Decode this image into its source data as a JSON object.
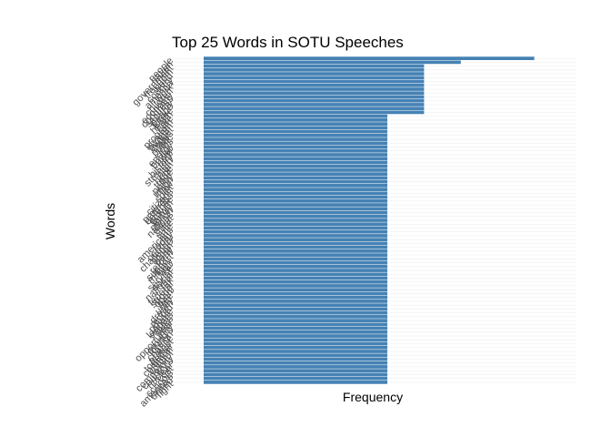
{
  "chart_data": {
    "type": "bar",
    "orientation": "horizontal",
    "title": "Top 25 Words in SOTU Speeches",
    "xlabel": "Frequency",
    "ylabel": "Words",
    "bar_color": "#4682b4",
    "background": "#ffffff",
    "gridline_color": "#ebebeb",
    "grid": true,
    "legend": "none",
    "x_tick_labels_shown": false,
    "y_tick_label_angle": 45,
    "xlim": [
      0,
      20
    ],
    "categories": [
      "people",
      "nation",
      "government",
      "freedom",
      "world",
      "country",
      "america",
      "work",
      "children",
      "economy",
      "congress",
      "security",
      "peace",
      "future",
      "health",
      "care",
      "program",
      "system",
      "budget",
      "states",
      "public",
      "jobs",
      "energy",
      "power",
      "help",
      "history",
      "strength",
      "plan",
      "hope",
      "trade",
      "policy",
      "union",
      "law",
      "spirit",
      "citizens",
      "progress",
      "defense",
      "growth",
      "family",
      "million",
      "nations",
      "great",
      "life",
      "time",
      "americans",
      "today",
      "century",
      "challenge",
      "action",
      "party",
      "reform",
      "support",
      "military",
      "war",
      "service",
      "social",
      "national",
      "tax",
      "federal",
      "strong",
      "open",
      "free",
      "unity",
      "dream",
      "record",
      "private",
      "leaders",
      "values",
      "year",
      "opportunity",
      "world's",
      "foreign",
      "chance",
      "protect",
      "together",
      "common",
      "control",
      "community",
      "country's",
      "nuclear",
      "cost",
      "schools",
      "america's",
      "united",
      "fight"
    ],
    "values": [
      18,
      14,
      12,
      12,
      12,
      12,
      12,
      12,
      12,
      12,
      12,
      12,
      12,
      12,
      12,
      10,
      10,
      10,
      10,
      10,
      10,
      10,
      10,
      10,
      10,
      10,
      10,
      10,
      10,
      10,
      10,
      10,
      10,
      10,
      10,
      10,
      10,
      10,
      10,
      10,
      10,
      10,
      10,
      10,
      10,
      10,
      10,
      10,
      10,
      10,
      10,
      10,
      10,
      10,
      10,
      10,
      10,
      10,
      10,
      10,
      10,
      10,
      10,
      10,
      10,
      10,
      10,
      10,
      10,
      10,
      10,
      10,
      10,
      10,
      10,
      10,
      10,
      10,
      10,
      10,
      10,
      10,
      10,
      10,
      10
    ]
  }
}
